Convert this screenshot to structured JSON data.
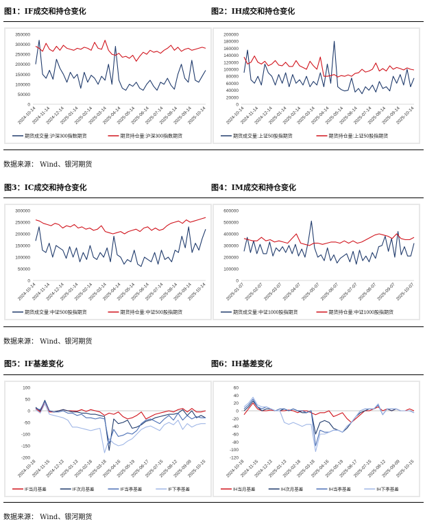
{
  "figures": [
    {
      "title": "图1：IF成交和持仓变化"
    },
    {
      "title": "图2：IH成交和持仓变化"
    },
    {
      "title": "图3：IC成交和持仓变化"
    },
    {
      "title": "图4：IM成交和持仓变化"
    },
    {
      "title": "图5：IF基差变化"
    },
    {
      "title": "图6：IH基差变化"
    }
  ],
  "source_text": "数据来源：  Wind、银河期货",
  "chart_data": [
    {
      "type": "line",
      "title": "IF成交和持仓变化",
      "ylim": [
        0,
        350000
      ],
      "yticks": [
        "350000",
        "300000",
        "250000",
        "200000",
        "150000",
        "100000",
        "50000",
        "0"
      ],
      "ytick_values": [
        350000,
        300000,
        250000,
        200000,
        150000,
        100000,
        50000,
        0
      ],
      "xticks": [
        "2024-10-14",
        "2024-11-14",
        "2024-12-14",
        "2025-01-14",
        "2025-02-14",
        "2025-03-14",
        "2025-04-14",
        "2025-05-14",
        "2025-06-14",
        "2025-07-14",
        "2025-08-14",
        "2025-09-14",
        "2025-10-14"
      ],
      "legend": "bottom",
      "series": [
        {
          "name": "期货成交量:沪深300指数期货",
          "color": "#1f3a6b",
          "values": [
            200000,
            320000,
            150000,
            130000,
            170000,
            125000,
            225000,
            180000,
            150000,
            110000,
            160000,
            130000,
            150000,
            80000,
            160000,
            110000,
            145000,
            130000,
            100000,
            140000,
            120000,
            200000,
            100000,
            290000,
            120000,
            80000,
            70000,
            100000,
            90000,
            110000,
            80000,
            70000,
            100000,
            120000,
            90000,
            70000,
            110000,
            100000,
            130000,
            95000,
            75000,
            150000,
            200000,
            130000,
            110000,
            220000,
            120000,
            110000,
            140000,
            170000
          ]
        },
        {
          "name": "期货持仓量:沪深300指数期货",
          "color": "#d0121b",
          "values": [
            290000,
            280000,
            265000,
            305000,
            275000,
            265000,
            290000,
            270000,
            295000,
            280000,
            275000,
            270000,
            280000,
            275000,
            285000,
            280000,
            270000,
            310000,
            280000,
            275000,
            320000,
            270000,
            250000,
            245000,
            255000,
            235000,
            240000,
            230000,
            245000,
            215000,
            240000,
            260000,
            250000,
            270000,
            260000,
            265000,
            255000,
            270000,
            280000,
            295000,
            270000,
            285000,
            265000,
            275000,
            280000,
            270000,
            275000,
            280000,
            285000,
            280000
          ]
        }
      ]
    },
    {
      "type": "line",
      "title": "IH成交和持仓变化",
      "ylim": [
        0,
        200000
      ],
      "yticks": [
        "200000",
        "180000",
        "160000",
        "140000",
        "120000",
        "100000",
        "80000",
        "60000",
        "40000",
        "20000",
        "0"
      ],
      "ytick_values": [
        200000,
        180000,
        160000,
        140000,
        120000,
        100000,
        80000,
        60000,
        40000,
        20000,
        0
      ],
      "xticks": [
        "2024-10-14",
        "2024-11-14",
        "2024-12-14",
        "2025-01-14",
        "2025-02-14",
        "2025-03-14",
        "2025-04-14",
        "2025-05-14",
        "2025-06-14",
        "2025-07-14",
        "2025-08-14",
        "2025-09-14",
        "2025-10-14"
      ],
      "legend": "bottom",
      "series": [
        {
          "name": "期货成交量:上证50股指期货",
          "color": "#1f3a6b",
          "values": [
            90000,
            155000,
            70000,
            60000,
            80000,
            55000,
            115000,
            90000,
            80000,
            55000,
            85000,
            60000,
            90000,
            50000,
            85000,
            60000,
            70000,
            55000,
            80000,
            50000,
            65000,
            55000,
            90000,
            50000,
            115000,
            60000,
            180000,
            50000,
            42000,
            38000,
            40000,
            75000,
            35000,
            45000,
            30000,
            50000,
            40000,
            55000,
            35000,
            65000,
            45000,
            50000,
            38000,
            80000,
            60000,
            85000,
            55000,
            100000,
            50000,
            75000
          ]
        },
        {
          "name": "期货持仓量:上证50股指期货",
          "color": "#d0121b",
          "values": [
            135000,
            115000,
            120000,
            138000,
            120000,
            115000,
            123000,
            110000,
            115000,
            125000,
            112000,
            110000,
            120000,
            108000,
            108000,
            125000,
            110000,
            105000,
            100000,
            123000,
            110000,
            100000,
            135000,
            80000,
            80000,
            82000,
            85000,
            78000,
            82000,
            80000,
            84000,
            80000,
            88000,
            90000,
            100000,
            92000,
            95000,
            100000,
            118000,
            95000,
            102000,
            95000,
            110000,
            100000,
            105000,
            102000,
            98000,
            104000,
            100000,
            98000
          ]
        }
      ]
    },
    {
      "type": "line",
      "title": "IC成交和持仓变化",
      "ylim": [
        0,
        300000
      ],
      "yticks": [
        "300000",
        "250000",
        "200000",
        "150000",
        "100000",
        "50000",
        "0"
      ],
      "ytick_values": [
        300000,
        250000,
        200000,
        150000,
        100000,
        50000,
        0
      ],
      "xticks": [
        "2024-10-14",
        "2024-11-14",
        "2024-12-14",
        "2025-01-14",
        "2025-02-14",
        "2025-03-14",
        "2025-04-14",
        "2025-05-14",
        "2025-06-14",
        "2025-07-14",
        "2025-08-14",
        "2025-09-14",
        "2025-10-14"
      ],
      "legend": "bottom",
      "series": [
        {
          "name": "期货成交量:中证500股指期货",
          "color": "#1f3a6b",
          "values": [
            170000,
            230000,
            130000,
            120000,
            160000,
            100000,
            150000,
            140000,
            130000,
            95000,
            145000,
            100000,
            140000,
            80000,
            120000,
            90000,
            150000,
            100000,
            90000,
            120000,
            100000,
            140000,
            80000,
            190000,
            110000,
            100000,
            70000,
            90000,
            80000,
            130000,
            70000,
            60000,
            100000,
            90000,
            80000,
            120000,
            70000,
            130000,
            90000,
            100000,
            80000,
            130000,
            120000,
            190000,
            140000,
            230000,
            120000,
            160000,
            130000,
            180000,
            220000
          ]
        },
        {
          "name": "期货持仓量:中证500股指期货",
          "color": "#d0121b",
          "values": [
            260000,
            255000,
            245000,
            240000,
            235000,
            245000,
            240000,
            225000,
            235000,
            230000,
            240000,
            225000,
            230000,
            220000,
            225000,
            215000,
            220000,
            235000,
            210000,
            205000,
            200000,
            205000,
            210000,
            200000,
            210000,
            215000,
            220000,
            210000,
            225000,
            230000,
            215000,
            225000,
            215000,
            220000,
            235000,
            245000,
            250000,
            255000,
            245000,
            260000,
            250000,
            255000,
            260000,
            265000,
            270000
          ]
        }
      ]
    },
    {
      "type": "line",
      "title": "IM成交和持仓变化",
      "ylim": [
        0,
        600000
      ],
      "yticks": [
        "600000",
        "500000",
        "400000",
        "300000",
        "200000",
        "100000",
        "0"
      ],
      "ytick_values": [
        600000,
        500000,
        400000,
        300000,
        200000,
        100000,
        0
      ],
      "xticks": [
        "2025-01-07",
        "2025-02-07",
        "2025-03-07",
        "2025-04-07",
        "2025-05-07",
        "2025-06-07",
        "2025-07-07",
        "2025-08-07",
        "2025-09-07",
        "2025-10-07"
      ],
      "legend": "bottom",
      "series": [
        {
          "name": "期货成交量:中证1000股指期货",
          "color": "#1f3a6b",
          "values": [
            250000,
            370000,
            240000,
            340000,
            230000,
            310000,
            230000,
            230000,
            330000,
            210000,
            280000,
            250000,
            290000,
            240000,
            300000,
            230000,
            310000,
            210000,
            270000,
            200000,
            330000,
            510000,
            280000,
            200000,
            220000,
            170000,
            280000,
            170000,
            220000,
            150000,
            190000,
            210000,
            230000,
            160000,
            250000,
            140000,
            260000,
            170000,
            210000,
            160000,
            240000,
            190000,
            290000,
            300000,
            380000,
            250000,
            360000,
            200000,
            420000,
            220000,
            290000,
            210000,
            210000,
            320000
          ]
        },
        {
          "name": "期货持仓量:中证1000股指期货",
          "color": "#d0121b",
          "values": [
            360000,
            350000,
            340000,
            340000,
            370000,
            340000,
            350000,
            330000,
            340000,
            330000,
            320000,
            360000,
            400000,
            320000,
            310000,
            300000,
            320000,
            320000,
            310000,
            320000,
            330000,
            330000,
            320000,
            340000,
            320000,
            340000,
            320000,
            330000,
            350000,
            370000,
            390000,
            400000,
            390000,
            380000,
            360000,
            400000,
            360000,
            350000,
            350000,
            370000
          ]
        }
      ]
    },
    {
      "type": "line",
      "title": "IF基差变化",
      "ylim": [
        -200,
        100
      ],
      "yticks": [
        "100",
        "50",
        "0",
        "-50",
        "-100",
        "-150",
        "-200"
      ],
      "ytick_values": [
        100,
        50,
        0,
        -50,
        -100,
        -150,
        -200
      ],
      "xticks": [
        "2024-10-18",
        "2024-11-15",
        "2024-12-13",
        "2025-01-13",
        "2025-02-18",
        "2025-03-18",
        "2025-04-16",
        "2025-05-19",
        "2025-06-17",
        "2025-07-15",
        "2025-08-12",
        "2025-09-09",
        "2025-10-15"
      ],
      "legend": "bottom",
      "series": [
        {
          "name": "IF当月基差",
          "color": "#d0121b",
          "values": [
            10,
            -5,
            40,
            -5,
            -5,
            0,
            5,
            0,
            0,
            -2,
            5,
            -3,
            5,
            0,
            -5,
            -20,
            -10,
            -15,
            -5,
            -25,
            -35,
            -30,
            -20,
            -5,
            -35,
            -25,
            -15,
            -10,
            -5,
            0,
            -5,
            5,
            10,
            -5,
            10,
            -5,
            -5,
            0
          ]
        },
        {
          "name": "IF次月基差",
          "color": "#1f3a6b",
          "values": [
            15,
            0,
            45,
            0,
            -5,
            0,
            5,
            0,
            -5,
            -5,
            -10,
            -10,
            -15,
            -15,
            -20,
            -25,
            -170,
            -35,
            -55,
            -50,
            -40,
            -75,
            -70,
            -60,
            -45,
            -40,
            -30,
            -25,
            -20,
            -15,
            -15,
            -10,
            5,
            -20,
            0,
            -30,
            -20,
            -30
          ]
        },
        {
          "name": "IF当季基差",
          "color": "#4a6fb5",
          "values": [
            10,
            5,
            40,
            0,
            -5,
            -5,
            0,
            -10,
            -10,
            -20,
            -15,
            -30,
            -30,
            -35,
            -30,
            -35,
            -140,
            -80,
            -110,
            -105,
            -95,
            -100,
            -85,
            -55,
            -40,
            -35,
            -45,
            -55,
            -35,
            -20,
            -40,
            -10,
            -40,
            -20,
            -35,
            -25,
            -30,
            -30
          ]
        },
        {
          "name": "IF下季基差",
          "color": "#9fb6e6",
          "values": [
            5,
            -10,
            30,
            -15,
            -20,
            -25,
            -30,
            -40,
            -70,
            -70,
            -75,
            -80,
            -85,
            -80,
            -75,
            -180,
            -120,
            -140,
            -150,
            -145,
            -130,
            -120,
            -100,
            -80,
            -70,
            -65,
            -75,
            -85,
            -60,
            -50,
            -60,
            -40,
            -80,
            -55,
            -70,
            -60,
            -55,
            -55
          ]
        }
      ]
    },
    {
      "type": "line",
      "title": "IH基差变化",
      "ylim": [
        -120,
        60
      ],
      "yticks": [
        "60",
        "40",
        "20",
        "0",
        "-20",
        "-40",
        "-60",
        "-80",
        "-100",
        "-120"
      ],
      "ytick_values": [
        60,
        40,
        20,
        0,
        -20,
        -40,
        -60,
        -80,
        -100,
        -120
      ],
      "xticks": [
        "2024-10-18",
        "2024-11-15",
        "2024-12-13",
        "2025-01-13",
        "2025-02-18",
        "2025-03-18",
        "2025-04-16",
        "2025-05-19",
        "2025-06-17",
        "2025-07-15",
        "2025-08-12",
        "2025-09-09",
        "2025-10-15"
      ],
      "legend": "bottom",
      "series": [
        {
          "name": "IH当月基差",
          "color": "#d0121b",
          "values": [
            -10,
            5,
            20,
            5,
            0,
            0,
            2,
            0,
            0,
            0,
            2,
            0,
            -5,
            0,
            0,
            -5,
            -10,
            -5,
            -5,
            0,
            -15,
            -10,
            -5,
            -20,
            -30,
            -20,
            -10,
            0,
            0,
            5,
            10,
            0,
            5,
            0,
            5,
            0,
            0,
            5,
            0
          ]
        },
        {
          "name": "IH次月基差",
          "color": "#1f3a6b",
          "values": [
            0,
            10,
            25,
            10,
            0,
            5,
            5,
            0,
            0,
            5,
            0,
            5,
            0,
            -5,
            -5,
            0,
            -60,
            -30,
            -25,
            -30,
            -45,
            -50,
            -55,
            -45,
            -30,
            -15,
            -5,
            0,
            5,
            5,
            15,
            -10,
            5,
            0,
            5,
            0,
            0,
            0,
            -5
          ]
        },
        {
          "name": "IH当季基差",
          "color": "#4a6fb5",
          "values": [
            5,
            15,
            30,
            10,
            5,
            10,
            5,
            0,
            5,
            5,
            0,
            5,
            0,
            0,
            -5,
            0,
            -90,
            -50,
            -55,
            -55,
            -50,
            -50,
            -55,
            -40,
            -30,
            -15,
            0,
            5,
            5,
            5,
            15,
            -10,
            5,
            5,
            5,
            0,
            0,
            0,
            -5
          ]
        },
        {
          "name": "IH下季基差",
          "color": "#9fb6e6",
          "values": [
            10,
            20,
            35,
            15,
            10,
            10,
            5,
            0,
            0,
            -30,
            -35,
            -30,
            -35,
            -40,
            -35,
            -35,
            -105,
            -60,
            -60,
            -55,
            -50,
            -50,
            -55,
            -40,
            -30,
            -15,
            0,
            5,
            5,
            5,
            18,
            -10,
            5,
            5,
            5,
            0,
            0,
            0,
            -5
          ]
        }
      ]
    }
  ]
}
